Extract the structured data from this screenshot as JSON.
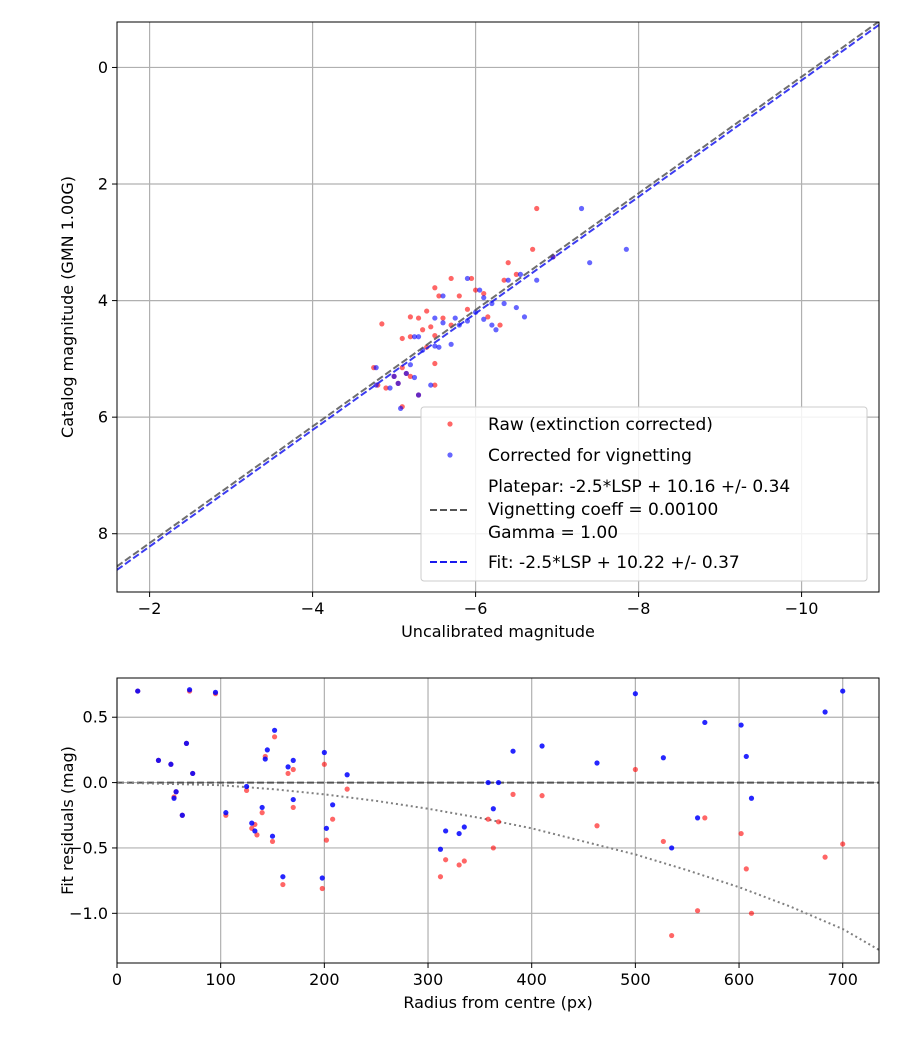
{
  "colors": {
    "raw": "#ff0000",
    "corrected": "#0000ff",
    "platepar_line": "#555555",
    "fit_line": "#1a1aee",
    "grid": "#b0b0b0",
    "vignetting_curve": "#808080",
    "zero_line": "#555555"
  },
  "chart_data": [
    {
      "type": "scatter",
      "name": "calibration",
      "xlabel": "Uncalibrated magnitude",
      "ylabel": "Catalog magnitude (GMN 1.00G)",
      "xlim": [
        -1.6,
        -10.95
      ],
      "ylim": [
        9.0,
        -0.78
      ],
      "xticks": [
        -2,
        -4,
        -6,
        -8,
        -10
      ],
      "xtick_labels": [
        "−2",
        "−4",
        "−6",
        "−8",
        "−10"
      ],
      "yticks": [
        0,
        2,
        4,
        6,
        8
      ],
      "ytick_labels": [
        "0",
        "2",
        "4",
        "6",
        "8"
      ],
      "grid": true,
      "legend_position": "lower-right",
      "legend": {
        "raw": "Raw (extinction corrected)",
        "corrected": "Corrected for vignetting",
        "platepar": [
          "Platepar: -2.5*LSP + 10.16 +/- 0.34",
          "Vignetting coeff = 0.00100",
          "Gamma = 1.00"
        ],
        "fit": "Fit: -2.5*LSP + 10.22 +/- 0.37"
      },
      "lines": [
        {
          "name": "Platepar",
          "slope": 1,
          "intercept": 10.16,
          "style": "dashed"
        },
        {
          "name": "Fit",
          "slope": 1,
          "intercept": 10.22,
          "style": "dashed"
        }
      ],
      "series": [
        {
          "name": "Raw (extinction corrected)",
          "points": [
            [
              -6.75,
              2.42
            ],
            [
              -6.7,
              3.12
            ],
            [
              -6.95,
              3.25
            ],
            [
              -6.4,
              3.35
            ],
            [
              -6.5,
              3.55
            ],
            [
              -6.35,
              3.65
            ],
            [
              -5.95,
              3.62
            ],
            [
              -5.7,
              3.62
            ],
            [
              -6.0,
              3.82
            ],
            [
              -5.5,
              3.78
            ],
            [
              -5.55,
              3.92
            ],
            [
              -5.8,
              3.92
            ],
            [
              -6.1,
              3.88
            ],
            [
              -5.9,
              4.15
            ],
            [
              -6.15,
              4.28
            ],
            [
              -6.3,
              4.42
            ],
            [
              -5.4,
              4.18
            ],
            [
              -5.2,
              4.28
            ],
            [
              -5.3,
              4.3
            ],
            [
              -5.6,
              4.3
            ],
            [
              -5.7,
              4.42
            ],
            [
              -5.35,
              4.5
            ],
            [
              -5.45,
              4.45
            ],
            [
              -4.85,
              4.4
            ],
            [
              -5.1,
              4.65
            ],
            [
              -5.2,
              4.62
            ],
            [
              -5.5,
              4.6
            ],
            [
              -5.4,
              4.8
            ],
            [
              -5.5,
              5.08
            ],
            [
              -5.1,
              5.15
            ],
            [
              -5.15,
              5.25
            ],
            [
              -5.0,
              5.3
            ],
            [
              -5.2,
              5.3
            ],
            [
              -5.05,
              5.42
            ],
            [
              -4.75,
              5.15
            ],
            [
              -4.8,
              5.45
            ],
            [
              -4.9,
              5.5
            ],
            [
              -5.3,
              5.62
            ],
            [
              -5.5,
              5.45
            ],
            [
              -5.1,
              5.82
            ]
          ]
        },
        {
          "name": "Corrected for vignetting",
          "points": [
            [
              -7.3,
              2.42
            ],
            [
              -7.85,
              3.12
            ],
            [
              -6.95,
              3.25
            ],
            [
              -7.4,
              3.35
            ],
            [
              -6.55,
              3.55
            ],
            [
              -6.75,
              3.65
            ],
            [
              -6.4,
              3.65
            ],
            [
              -5.9,
              3.62
            ],
            [
              -6.05,
              3.82
            ],
            [
              -5.6,
              3.92
            ],
            [
              -6.1,
              3.95
            ],
            [
              -6.2,
              4.05
            ],
            [
              -6.35,
              4.05
            ],
            [
              -6.5,
              4.12
            ],
            [
              -6.6,
              4.28
            ],
            [
              -6.0,
              4.2
            ],
            [
              -6.1,
              4.32
            ],
            [
              -6.2,
              4.42
            ],
            [
              -6.25,
              4.5
            ],
            [
              -5.9,
              4.35
            ],
            [
              -5.8,
              4.42
            ],
            [
              -5.75,
              4.3
            ],
            [
              -5.5,
              4.3
            ],
            [
              -5.6,
              4.38
            ],
            [
              -5.3,
              4.62
            ],
            [
              -5.25,
              4.62
            ],
            [
              -5.7,
              4.75
            ],
            [
              -5.5,
              4.78
            ],
            [
              -5.55,
              4.8
            ],
            [
              -5.35,
              4.85
            ],
            [
              -5.2,
              5.1
            ],
            [
              -5.15,
              5.25
            ],
            [
              -5.0,
              5.3
            ],
            [
              -5.25,
              5.32
            ],
            [
              -5.05,
              5.42
            ],
            [
              -4.78,
              5.15
            ],
            [
              -4.78,
              5.45
            ],
            [
              -4.95,
              5.5
            ],
            [
              -5.3,
              5.62
            ],
            [
              -5.45,
              5.45
            ],
            [
              -5.08,
              5.85
            ]
          ]
        }
      ]
    },
    {
      "type": "scatter",
      "name": "residuals",
      "xlabel": "Radius from centre (px)",
      "ylabel": "Fit residuals (mag)",
      "xlim": [
        0,
        735
      ],
      "ylim": [
        -1.38,
        0.8
      ],
      "xticks": [
        0,
        100,
        200,
        300,
        400,
        500,
        600,
        700
      ],
      "xtick_labels": [
        "0",
        "100",
        "200",
        "300",
        "400",
        "500",
        "600",
        "700"
      ],
      "yticks": [
        0.5,
        0.0,
        -0.5,
        -1.0
      ],
      "ytick_labels": [
        "0.5",
        "0.0",
        "−0.5",
        "−1.0"
      ],
      "grid": true,
      "reference_line": {
        "y": 0.0,
        "style": "dashed"
      },
      "vignetting_curve": {
        "x": [
          0,
          50,
          100,
          150,
          200,
          250,
          300,
          350,
          400,
          450,
          500,
          550,
          600,
          650,
          700,
          735
        ],
        "y": [
          0.0,
          -0.01,
          -0.02,
          -0.05,
          -0.09,
          -0.14,
          -0.2,
          -0.27,
          -0.35,
          -0.45,
          -0.55,
          -0.67,
          -0.8,
          -0.95,
          -1.12,
          -1.28
        ]
      },
      "series": [
        {
          "name": "Raw (extinction corrected)",
          "points": [
            [
              20,
              0.7
            ],
            [
              40,
              0.17
            ],
            [
              52,
              0.14
            ],
            [
              55,
              -0.11
            ],
            [
              57,
              -0.07
            ],
            [
              63,
              -0.25
            ],
            [
              67,
              0.3
            ],
            [
              70,
              0.7
            ],
            [
              73,
              0.07
            ],
            [
              95,
              0.68
            ],
            [
              105,
              -0.25
            ],
            [
              125,
              -0.06
            ],
            [
              130,
              -0.35
            ],
            [
              133,
              -0.32
            ],
            [
              135,
              -0.4
            ],
            [
              140,
              -0.23
            ],
            [
              143,
              0.2
            ],
            [
              150,
              -0.45
            ],
            [
              152,
              0.35
            ],
            [
              160,
              -0.78
            ],
            [
              165,
              0.07
            ],
            [
              170,
              -0.19
            ],
            [
              170,
              0.1
            ],
            [
              198,
              -0.81
            ],
            [
              200,
              0.14
            ],
            [
              202,
              -0.44
            ],
            [
              208,
              -0.28
            ],
            [
              222,
              -0.05
            ],
            [
              312,
              -0.72
            ],
            [
              317,
              -0.59
            ],
            [
              330,
              -0.63
            ],
            [
              335,
              -0.6
            ],
            [
              358,
              -0.28
            ],
            [
              363,
              -0.5
            ],
            [
              368,
              -0.3
            ],
            [
              382,
              -0.09
            ],
            [
              410,
              -0.1
            ],
            [
              463,
              -0.33
            ],
            [
              500,
              0.1
            ],
            [
              527,
              -0.45
            ],
            [
              535,
              -1.17
            ],
            [
              560,
              -0.98
            ],
            [
              567,
              -0.27
            ],
            [
              602,
              -0.39
            ],
            [
              607,
              -0.66
            ],
            [
              612,
              -1.0
            ],
            [
              683,
              -0.57
            ],
            [
              700,
              -0.47
            ]
          ]
        },
        {
          "name": "Corrected for vignetting",
          "points": [
            [
              20,
              0.7
            ],
            [
              40,
              0.17
            ],
            [
              52,
              0.14
            ],
            [
              55,
              -0.12
            ],
            [
              57,
              -0.07
            ],
            [
              63,
              -0.25
            ],
            [
              67,
              0.3
            ],
            [
              70,
              0.71
            ],
            [
              73,
              0.07
            ],
            [
              95,
              0.69
            ],
            [
              105,
              -0.23
            ],
            [
              125,
              -0.03
            ],
            [
              130,
              -0.31
            ],
            [
              133,
              -0.37
            ],
            [
              140,
              -0.19
            ],
            [
              143,
              0.18
            ],
            [
              145,
              0.25
            ],
            [
              150,
              -0.41
            ],
            [
              152,
              0.4
            ],
            [
              160,
              -0.72
            ],
            [
              165,
              0.12
            ],
            [
              170,
              -0.13
            ],
            [
              170,
              0.17
            ],
            [
              198,
              -0.73
            ],
            [
              200,
              0.23
            ],
            [
              202,
              -0.35
            ],
            [
              208,
              -0.17
            ],
            [
              222,
              0.06
            ],
            [
              312,
              -0.51
            ],
            [
              317,
              -0.37
            ],
            [
              330,
              -0.39
            ],
            [
              335,
              -0.34
            ],
            [
              358,
              0.0
            ],
            [
              363,
              -0.2
            ],
            [
              368,
              0.0
            ],
            [
              382,
              0.24
            ],
            [
              410,
              0.28
            ],
            [
              463,
              0.15
            ],
            [
              500,
              0.68
            ],
            [
              527,
              0.19
            ],
            [
              535,
              -0.5
            ],
            [
              560,
              -0.27
            ],
            [
              567,
              0.46
            ],
            [
              602,
              0.44
            ],
            [
              607,
              0.2
            ],
            [
              612,
              -0.12
            ],
            [
              683,
              0.54
            ],
            [
              700,
              0.7
            ]
          ]
        }
      ]
    }
  ]
}
